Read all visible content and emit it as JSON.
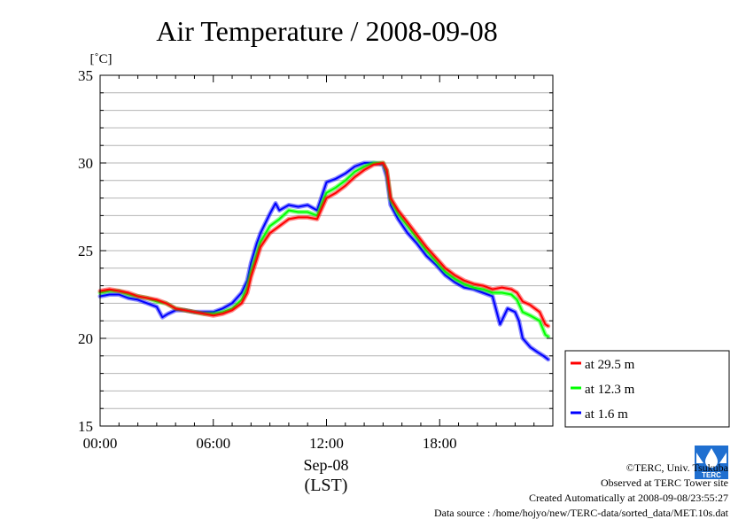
{
  "chart_data": {
    "type": "line",
    "title": "Air Temperature / 2008-09-08",
    "ylabel": "[˚C]",
    "xlabel_date": "Sep-08",
    "xlabel_tz": "(LST)",
    "xlim": [
      0,
      24
    ],
    "ylim": [
      15,
      35
    ],
    "yticks": [
      15,
      20,
      25,
      30,
      35
    ],
    "xticks": [
      "00:00",
      "06:00",
      "12:00",
      "18:00"
    ],
    "grid": true,
    "legend_position": "right-bottom",
    "series": [
      {
        "name": "at 29.5 m",
        "color": "#ff0000",
        "points": [
          [
            0,
            22.7
          ],
          [
            0.5,
            22.8
          ],
          [
            1,
            22.7
          ],
          [
            1.5,
            22.6
          ],
          [
            2,
            22.4
          ],
          [
            2.5,
            22.3
          ],
          [
            3,
            22.2
          ],
          [
            3.5,
            22.0
          ],
          [
            4,
            21.7
          ],
          [
            4.5,
            21.6
          ],
          [
            5,
            21.5
          ],
          [
            5.5,
            21.4
          ],
          [
            6,
            21.3
          ],
          [
            6.5,
            21.4
          ],
          [
            7,
            21.6
          ],
          [
            7.5,
            22.0
          ],
          [
            7.8,
            22.6
          ],
          [
            8,
            23.5
          ],
          [
            8.3,
            24.5
          ],
          [
            8.5,
            25.2
          ],
          [
            9,
            26.0
          ],
          [
            9.5,
            26.4
          ],
          [
            10,
            26.8
          ],
          [
            10.5,
            26.9
          ],
          [
            11,
            26.9
          ],
          [
            11.5,
            26.8
          ],
          [
            12,
            28.0
          ],
          [
            12.5,
            28.3
          ],
          [
            13,
            28.7
          ],
          [
            13.5,
            29.2
          ],
          [
            14,
            29.6
          ],
          [
            14.5,
            29.9
          ],
          [
            15,
            30.0
          ],
          [
            15.2,
            29.6
          ],
          [
            15.4,
            28.0
          ],
          [
            15.8,
            27.3
          ],
          [
            16.3,
            26.6
          ],
          [
            16.8,
            25.9
          ],
          [
            17.3,
            25.2
          ],
          [
            17.8,
            24.6
          ],
          [
            18.3,
            24.0
          ],
          [
            18.8,
            23.6
          ],
          [
            19.3,
            23.3
          ],
          [
            19.8,
            23.1
          ],
          [
            20.3,
            23.0
          ],
          [
            20.8,
            22.8
          ],
          [
            21.3,
            22.9
          ],
          [
            21.8,
            22.8
          ],
          [
            22.1,
            22.6
          ],
          [
            22.4,
            22.1
          ],
          [
            22.8,
            21.9
          ],
          [
            23.3,
            21.5
          ],
          [
            23.6,
            20.8
          ],
          [
            23.75,
            20.7
          ]
        ]
      },
      {
        "name": "at 12.3 m",
        "color": "#00ff00",
        "points": [
          [
            0,
            22.6
          ],
          [
            0.5,
            22.7
          ],
          [
            1,
            22.7
          ],
          [
            1.5,
            22.5
          ],
          [
            2,
            22.4
          ],
          [
            2.5,
            22.3
          ],
          [
            3,
            22.1
          ],
          [
            3.5,
            22.0
          ],
          [
            4,
            21.7
          ],
          [
            4.5,
            21.6
          ],
          [
            5,
            21.5
          ],
          [
            5.5,
            21.4
          ],
          [
            6,
            21.4
          ],
          [
            6.5,
            21.5
          ],
          [
            7,
            21.7
          ],
          [
            7.5,
            22.2
          ],
          [
            7.8,
            22.9
          ],
          [
            8,
            23.8
          ],
          [
            8.3,
            24.8
          ],
          [
            8.5,
            25.5
          ],
          [
            9,
            26.4
          ],
          [
            9.5,
            26.8
          ],
          [
            10,
            27.3
          ],
          [
            10.5,
            27.2
          ],
          [
            11,
            27.2
          ],
          [
            11.5,
            27.0
          ],
          [
            12,
            28.3
          ],
          [
            12.5,
            28.6
          ],
          [
            13,
            29.0
          ],
          [
            13.5,
            29.5
          ],
          [
            14,
            29.8
          ],
          [
            14.5,
            30.0
          ],
          [
            15,
            30.0
          ],
          [
            15.2,
            29.5
          ],
          [
            15.4,
            27.9
          ],
          [
            15.8,
            27.1
          ],
          [
            16.3,
            26.4
          ],
          [
            16.8,
            25.7
          ],
          [
            17.3,
            25.0
          ],
          [
            17.8,
            24.4
          ],
          [
            18.3,
            23.8
          ],
          [
            18.8,
            23.4
          ],
          [
            19.3,
            23.1
          ],
          [
            19.8,
            22.9
          ],
          [
            20.3,
            22.8
          ],
          [
            20.8,
            22.6
          ],
          [
            21.3,
            22.6
          ],
          [
            21.8,
            22.5
          ],
          [
            22.1,
            22.2
          ],
          [
            22.4,
            21.5
          ],
          [
            22.8,
            21.3
          ],
          [
            23.3,
            21.0
          ],
          [
            23.6,
            20.2
          ],
          [
            23.75,
            20.1
          ]
        ]
      },
      {
        "name": "at 1.6 m",
        "color": "#0000ff",
        "points": [
          [
            0,
            22.4
          ],
          [
            0.5,
            22.5
          ],
          [
            1,
            22.5
          ],
          [
            1.5,
            22.3
          ],
          [
            2,
            22.2
          ],
          [
            2.5,
            22.0
          ],
          [
            3,
            21.8
          ],
          [
            3.3,
            21.2
          ],
          [
            3.6,
            21.4
          ],
          [
            4,
            21.6
          ],
          [
            4.5,
            21.6
          ],
          [
            5,
            21.5
          ],
          [
            5.5,
            21.5
          ],
          [
            6,
            21.5
          ],
          [
            6.5,
            21.7
          ],
          [
            7,
            22.0
          ],
          [
            7.5,
            22.6
          ],
          [
            7.8,
            23.3
          ],
          [
            8,
            24.3
          ],
          [
            8.3,
            25.4
          ],
          [
            8.5,
            26.0
          ],
          [
            9,
            27.1
          ],
          [
            9.3,
            27.7
          ],
          [
            9.5,
            27.3
          ],
          [
            10,
            27.6
          ],
          [
            10.5,
            27.5
          ],
          [
            11,
            27.6
          ],
          [
            11.5,
            27.3
          ],
          [
            12,
            28.9
          ],
          [
            12.5,
            29.1
          ],
          [
            13,
            29.4
          ],
          [
            13.5,
            29.8
          ],
          [
            14,
            30.0
          ],
          [
            14.5,
            30.0
          ],
          [
            15,
            29.9
          ],
          [
            15.2,
            29.2
          ],
          [
            15.4,
            27.6
          ],
          [
            15.8,
            26.8
          ],
          [
            16.3,
            26.0
          ],
          [
            16.8,
            25.4
          ],
          [
            17.3,
            24.7
          ],
          [
            17.8,
            24.2
          ],
          [
            18.3,
            23.6
          ],
          [
            18.8,
            23.2
          ],
          [
            19.3,
            22.9
          ],
          [
            19.8,
            22.8
          ],
          [
            20.3,
            22.6
          ],
          [
            20.8,
            22.4
          ],
          [
            21.2,
            20.8
          ],
          [
            21.6,
            21.7
          ],
          [
            22,
            21.5
          ],
          [
            22.2,
            21.0
          ],
          [
            22.4,
            20.0
          ],
          [
            22.8,
            19.5
          ],
          [
            23.2,
            19.2
          ],
          [
            23.5,
            19.0
          ],
          [
            23.75,
            18.8
          ]
        ]
      }
    ]
  },
  "footer": {
    "copyright": "©TERC, Univ. Tsukuba",
    "observed": "Observed at TERC Tower site",
    "created": "Created Automatically at 2008-09-08/23:55:27",
    "source": "Data source : /home/hojyo/new/TERC-data/sorted_data/MET.10s.dat",
    "logo_text": "TERC"
  }
}
